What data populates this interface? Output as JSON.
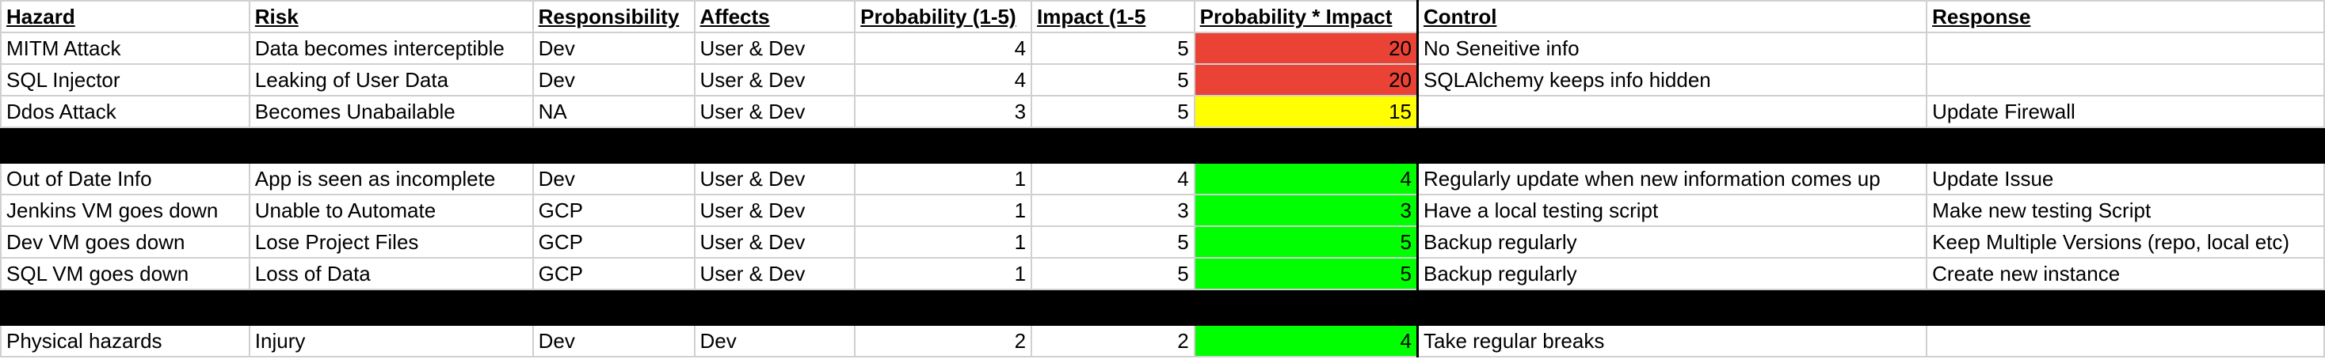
{
  "colors": {
    "high": "#ea4335",
    "medium": "#ffff00",
    "low": "#00ff00",
    "separator": "#000000"
  },
  "headers": [
    "Hazard",
    "Risk",
    "Responsibility",
    "Affects",
    "Probability (1-5)",
    "Impact (1-5",
    "Probability * Impact",
    "Control",
    "Response"
  ],
  "rows": [
    {
      "hazard": "MITM Attack",
      "risk": "Data becomes interceptible",
      "responsibility": "Dev",
      "affects": "User & Dev",
      "probability": "4",
      "impact": "5",
      "score": "20",
      "level": "high",
      "control": "No Seneitive info",
      "response": ""
    },
    {
      "hazard": "SQL Injector",
      "risk": "Leaking of User Data",
      "responsibility": "Dev",
      "affects": "User & Dev",
      "probability": "4",
      "impact": "5",
      "score": "20",
      "level": "high",
      "control": "SQLAlchemy keeps info hidden",
      "response": ""
    },
    {
      "hazard": "Ddos Attack",
      "risk": "Becomes Unabailable",
      "responsibility": "NA",
      "affects": "User & Dev",
      "probability": "3",
      "impact": "5",
      "score": "15",
      "level": "medium",
      "control": "",
      "response": "Update Firewall"
    },
    {
      "separator": true
    },
    {
      "hazard": "Out of Date Info",
      "risk": "App is seen as incomplete",
      "responsibility": "Dev",
      "affects": "User & Dev",
      "probability": "1",
      "impact": "4",
      "score": "4",
      "level": "low",
      "control": "Regularly update when new information comes up",
      "response": "Update Issue"
    },
    {
      "hazard": "Jenkins VM goes down",
      "risk": "Unable to Automate",
      "responsibility": "GCP",
      "affects": "User & Dev",
      "probability": "1",
      "impact": "3",
      "score": "3",
      "level": "low",
      "control": "Have a local testing script",
      "response": "Make new testing Script"
    },
    {
      "hazard": "Dev VM goes down",
      "risk": "Lose Project Files",
      "responsibility": "GCP",
      "affects": "User & Dev",
      "probability": "1",
      "impact": "5",
      "score": "5",
      "level": "low",
      "control": "Backup regularly",
      "response": "Keep Multiple Versions (repo, local etc)"
    },
    {
      "hazard": "SQL VM goes down",
      "risk": "Loss of Data",
      "responsibility": "GCP",
      "affects": "User & Dev",
      "probability": "1",
      "impact": "5",
      "score": "5",
      "level": "low",
      "control": "Backup regularly",
      "response": "Create new instance"
    },
    {
      "separator": true
    },
    {
      "hazard": "Physical hazards",
      "risk": "Injury",
      "responsibility": "Dev",
      "affects": "Dev",
      "probability": "2",
      "impact": "2",
      "score": "4",
      "level": "low",
      "control": "Take regular breaks",
      "response": ""
    }
  ]
}
